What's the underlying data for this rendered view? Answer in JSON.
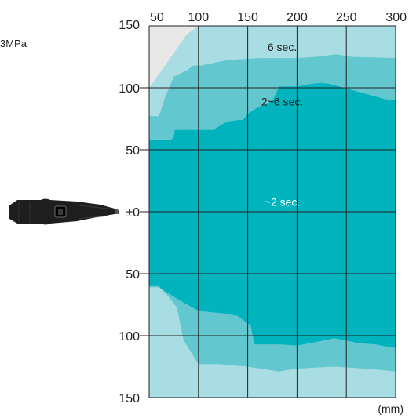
{
  "chart_data": {
    "type": "area",
    "title": "",
    "xlabel": "(mm)",
    "ylabel": "",
    "pressure_label": "3MPa",
    "x_ticks": [
      "50",
      "100",
      "150",
      "200",
      "250",
      "300"
    ],
    "y_ticks_top": [
      "150",
      "100",
      "50"
    ],
    "y_tick_center": "±0",
    "y_ticks_bottom": [
      "50",
      "100",
      "150"
    ],
    "xlim": [
      50,
      300
    ],
    "ylim": [
      -150,
      150
    ],
    "grid": true,
    "colors": {
      "background": "#e8e8e8",
      "band_light": "#a7dde3",
      "band_mid": "#63c7d0",
      "core": "#00b3bd",
      "grid": "#222222"
    },
    "series": [
      {
        "name": "6 sec.",
        "label_at": [
          185,
          133
        ],
        "upper": [
          [
            50,
            100
          ],
          [
            68,
            120
          ],
          [
            88,
            143
          ],
          [
            100,
            150
          ],
          [
            300,
            150
          ]
        ],
        "lower": [
          [
            50,
            -150
          ],
          [
            100,
            -150
          ],
          [
            300,
            -150
          ]
        ]
      },
      {
        "name": "2~6 sec.",
        "label_at": [
          185,
          89
        ],
        "upper": [
          [
            50,
            77
          ],
          [
            60,
            77
          ],
          [
            66,
            92
          ],
          [
            75,
            109
          ],
          [
            88,
            114
          ],
          [
            95,
            118
          ],
          [
            103,
            118
          ],
          [
            115,
            120
          ],
          [
            127,
            122
          ],
          [
            140,
            123
          ],
          [
            162,
            124
          ],
          [
            200,
            124
          ],
          [
            220,
            125
          ],
          [
            240,
            127
          ],
          [
            255,
            125
          ],
          [
            300,
            124
          ]
        ],
        "lower": [
          [
            50,
            -61
          ],
          [
            60,
            -61
          ],
          [
            68,
            -67
          ],
          [
            78,
            -77
          ],
          [
            85,
            -104
          ],
          [
            100,
            -123
          ],
          [
            120,
            -123
          ],
          [
            150,
            -125
          ],
          [
            182,
            -129
          ],
          [
            195,
            -127
          ],
          [
            212,
            -126
          ],
          [
            238,
            -125
          ],
          [
            258,
            -126
          ],
          [
            277,
            -127
          ],
          [
            300,
            -129
          ]
        ]
      },
      {
        "name": "~2 sec.",
        "label_at": [
          185,
          8
        ],
        "text_color": "#ffffff",
        "upper": [
          [
            50,
            58
          ],
          [
            66,
            58
          ],
          [
            72,
            58
          ],
          [
            75,
            60
          ],
          [
            76,
            66
          ],
          [
            100,
            66
          ],
          [
            115,
            66
          ],
          [
            127,
            72
          ],
          [
            131,
            73
          ],
          [
            140,
            74
          ],
          [
            145,
            74
          ],
          [
            150,
            79
          ],
          [
            158,
            83
          ],
          [
            165,
            86
          ],
          [
            170,
            87
          ],
          [
            176,
            91
          ],
          [
            182,
            101
          ],
          [
            200,
            101
          ],
          [
            213,
            103
          ],
          [
            225,
            104
          ],
          [
            234,
            103
          ],
          [
            238,
            102
          ],
          [
            293,
            90
          ],
          [
            300,
            90
          ]
        ],
        "lower": [
          [
            50,
            -60
          ],
          [
            60,
            -60
          ],
          [
            62,
            -62
          ],
          [
            76,
            -69
          ],
          [
            78,
            -70
          ],
          [
            100,
            -80
          ],
          [
            125,
            -82
          ],
          [
            140,
            -84
          ],
          [
            153,
            -92
          ],
          [
            157,
            -107
          ],
          [
            182,
            -107
          ],
          [
            200,
            -108
          ],
          [
            220,
            -105
          ],
          [
            238,
            -102
          ],
          [
            250,
            -104
          ],
          [
            262,
            -106
          ],
          [
            280,
            -107
          ],
          [
            292,
            -109
          ],
          [
            300,
            -109
          ]
        ]
      }
    ]
  }
}
